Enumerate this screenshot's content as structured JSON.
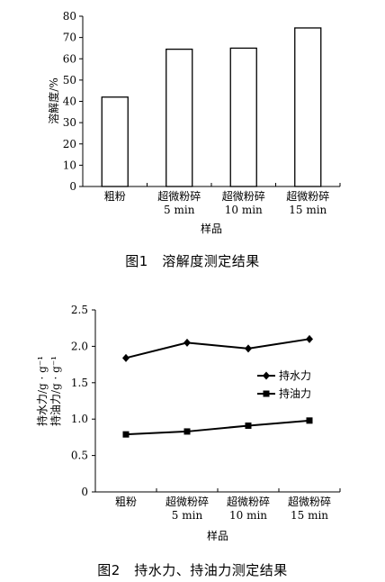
{
  "chart_data": [
    {
      "type": "bar",
      "title": "",
      "ylabel": "溶解度/%",
      "xlabel": "样品",
      "ylim": [
        0,
        80
      ],
      "yticks": [
        0,
        10,
        20,
        30,
        40,
        50,
        60,
        70,
        80
      ],
      "categories": [
        [
          "粗粉"
        ],
        [
          "超微粉碎",
          "5 min"
        ],
        [
          "超微粉碎",
          "10 min"
        ],
        [
          "超微粉碎",
          "15 min"
        ]
      ],
      "values": [
        42,
        64.5,
        65,
        74.5
      ],
      "grid": false,
      "caption": "图1　溶解度测定结果"
    },
    {
      "type": "line",
      "title": "",
      "ylabel_lines": [
        "持水力/g · g⁻¹",
        "持油力/g · g⁻¹"
      ],
      "xlabel": "样品",
      "ylim": [
        0,
        2.5
      ],
      "yticks": [
        "0",
        "0.5",
        "1.0",
        "1.5",
        "2.0",
        "2.5"
      ],
      "categories": [
        [
          "粗粉"
        ],
        [
          "超微粉碎",
          "5 min"
        ],
        [
          "超微粉碎",
          "10 min"
        ],
        [
          "超微粉碎",
          "15 min"
        ]
      ],
      "series": [
        {
          "name": "持水力",
          "marker": "diamond",
          "values": [
            1.84,
            2.05,
            1.97,
            2.1
          ]
        },
        {
          "name": "持油力",
          "marker": "square",
          "values": [
            0.79,
            0.83,
            0.91,
            0.98
          ]
        }
      ],
      "legend": "right",
      "grid": false,
      "caption": "图2　持水力、持油力测定结果"
    }
  ]
}
